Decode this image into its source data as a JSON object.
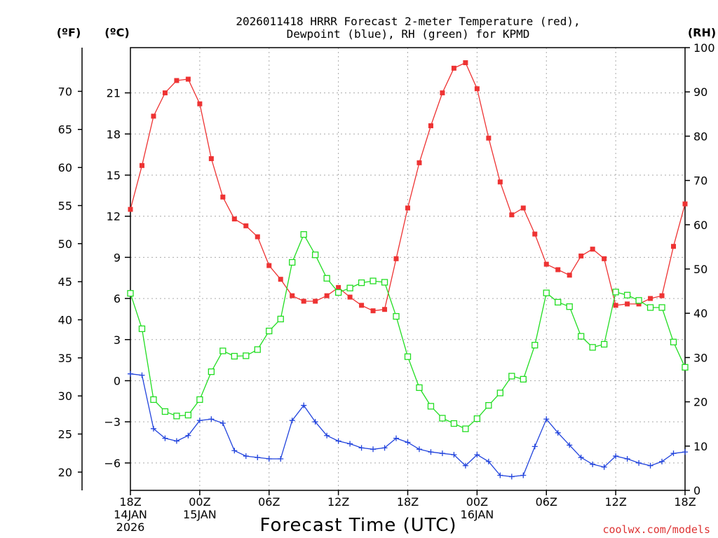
{
  "chart_data": {
    "type": "line",
    "title_line1": "2026011418 HRRR Forecast 2-meter Temperature (red),",
    "title_line2": "Dewpoint (blue), RH (green) for KPMD",
    "xlabel": "Forecast Time (UTC)",
    "credit": "coolwx.com/models",
    "colors": {
      "temperature": "#ee3333",
      "dewpoint": "#2244dd",
      "rh": "#22dd22",
      "credit": "#dd3333",
      "grid": "#aaaaaa"
    },
    "axis_units": {
      "fahrenheit": "(ºF)",
      "celsius": "(ºC)",
      "rh": "(RH)"
    },
    "ylim_celsius": [
      -8,
      24.3
    ],
    "ylim_rh": [
      0,
      100
    ],
    "celsius_ticks": [
      -6,
      -3,
      0,
      3,
      6,
      9,
      12,
      15,
      18,
      21
    ],
    "fahrenheit_ticks": [
      20,
      25,
      30,
      35,
      40,
      45,
      50,
      55,
      60,
      65,
      70
    ],
    "rh_ticks": [
      0,
      10,
      20,
      30,
      40,
      50,
      60,
      70,
      80,
      90,
      100
    ],
    "x_hours_range": [
      0,
      48
    ],
    "x_ticks": [
      {
        "hour": 0,
        "line1": "18Z",
        "line2": "14JAN",
        "line3": "2026"
      },
      {
        "hour": 6,
        "line1": "00Z",
        "line2": "15JAN",
        "line3": ""
      },
      {
        "hour": 12,
        "line1": "06Z",
        "line2": "",
        "line3": ""
      },
      {
        "hour": 18,
        "line1": "12Z",
        "line2": "",
        "line3": ""
      },
      {
        "hour": 24,
        "line1": "18Z",
        "line2": "",
        "line3": ""
      },
      {
        "hour": 30,
        "line1": "00Z",
        "line2": "16JAN",
        "line3": ""
      },
      {
        "hour": 36,
        "line1": "06Z",
        "line2": "",
        "line3": ""
      },
      {
        "hour": 42,
        "line1": "12Z",
        "line2": "",
        "line3": ""
      },
      {
        "hour": 48,
        "line1": "18Z",
        "line2": "",
        "line3": ""
      }
    ],
    "series": [
      {
        "name": "Temperature (°C)",
        "key": "temperature",
        "values": [
          12.5,
          15.7,
          19.3,
          21.0,
          21.9,
          22.0,
          20.2,
          16.2,
          13.4,
          11.8,
          11.3,
          10.5,
          8.4,
          7.4,
          6.2,
          5.8,
          5.8,
          6.2,
          6.8,
          6.1,
          5.5,
          5.1,
          5.2,
          8.9,
          12.6,
          15.9,
          18.6,
          21.0,
          22.8,
          23.2,
          21.3,
          17.7,
          14.5,
          12.1,
          12.6,
          10.7,
          8.5,
          8.1,
          7.7,
          9.1,
          9.6,
          8.9,
          5.5,
          5.6,
          5.6,
          6.0,
          6.2,
          9.8,
          12.9
        ]
      },
      {
        "name": "Dewpoint (°C)",
        "key": "dewpoint",
        "values": [
          0.5,
          0.4,
          -3.5,
          -4.2,
          -4.4,
          -4.0,
          -2.9,
          -2.8,
          -3.1,
          -5.1,
          -5.5,
          -5.6,
          -5.7,
          -5.7,
          -2.9,
          -1.8,
          -3.0,
          -4.0,
          -4.4,
          -4.6,
          -4.9,
          -5.0,
          -4.9,
          -4.2,
          -4.5,
          -5.0,
          -5.2,
          -5.3,
          -5.4,
          -6.2,
          -5.4,
          -5.9,
          -6.9,
          -7.0,
          -6.9,
          -4.8,
          -2.8,
          -3.8,
          -4.7,
          -5.6,
          -6.1,
          -6.3,
          -5.5,
          -5.7,
          -6.0,
          -6.2,
          -5.9,
          -5.3,
          -5.2
        ]
      },
      {
        "name": "Relative Humidity (%)",
        "key": "rh",
        "values": [
          44.5,
          36.5,
          20.5,
          17.8,
          16.8,
          17.0,
          20.5,
          26.8,
          31.5,
          30.3,
          30.4,
          31.8,
          36.0,
          38.7,
          51.5,
          57.8,
          53.2,
          47.9,
          44.7,
          45.7,
          46.9,
          47.3,
          47.0,
          39.3,
          30.2,
          23.2,
          19.0,
          16.3,
          15.1,
          13.9,
          16.2,
          19.2,
          22.0,
          25.8,
          25.1,
          32.8,
          44.6,
          42.5,
          41.5,
          34.8,
          32.3,
          33.0,
          44.8,
          44.1,
          42.9,
          41.3,
          41.3,
          33.5,
          27.8
        ]
      }
    ]
  }
}
